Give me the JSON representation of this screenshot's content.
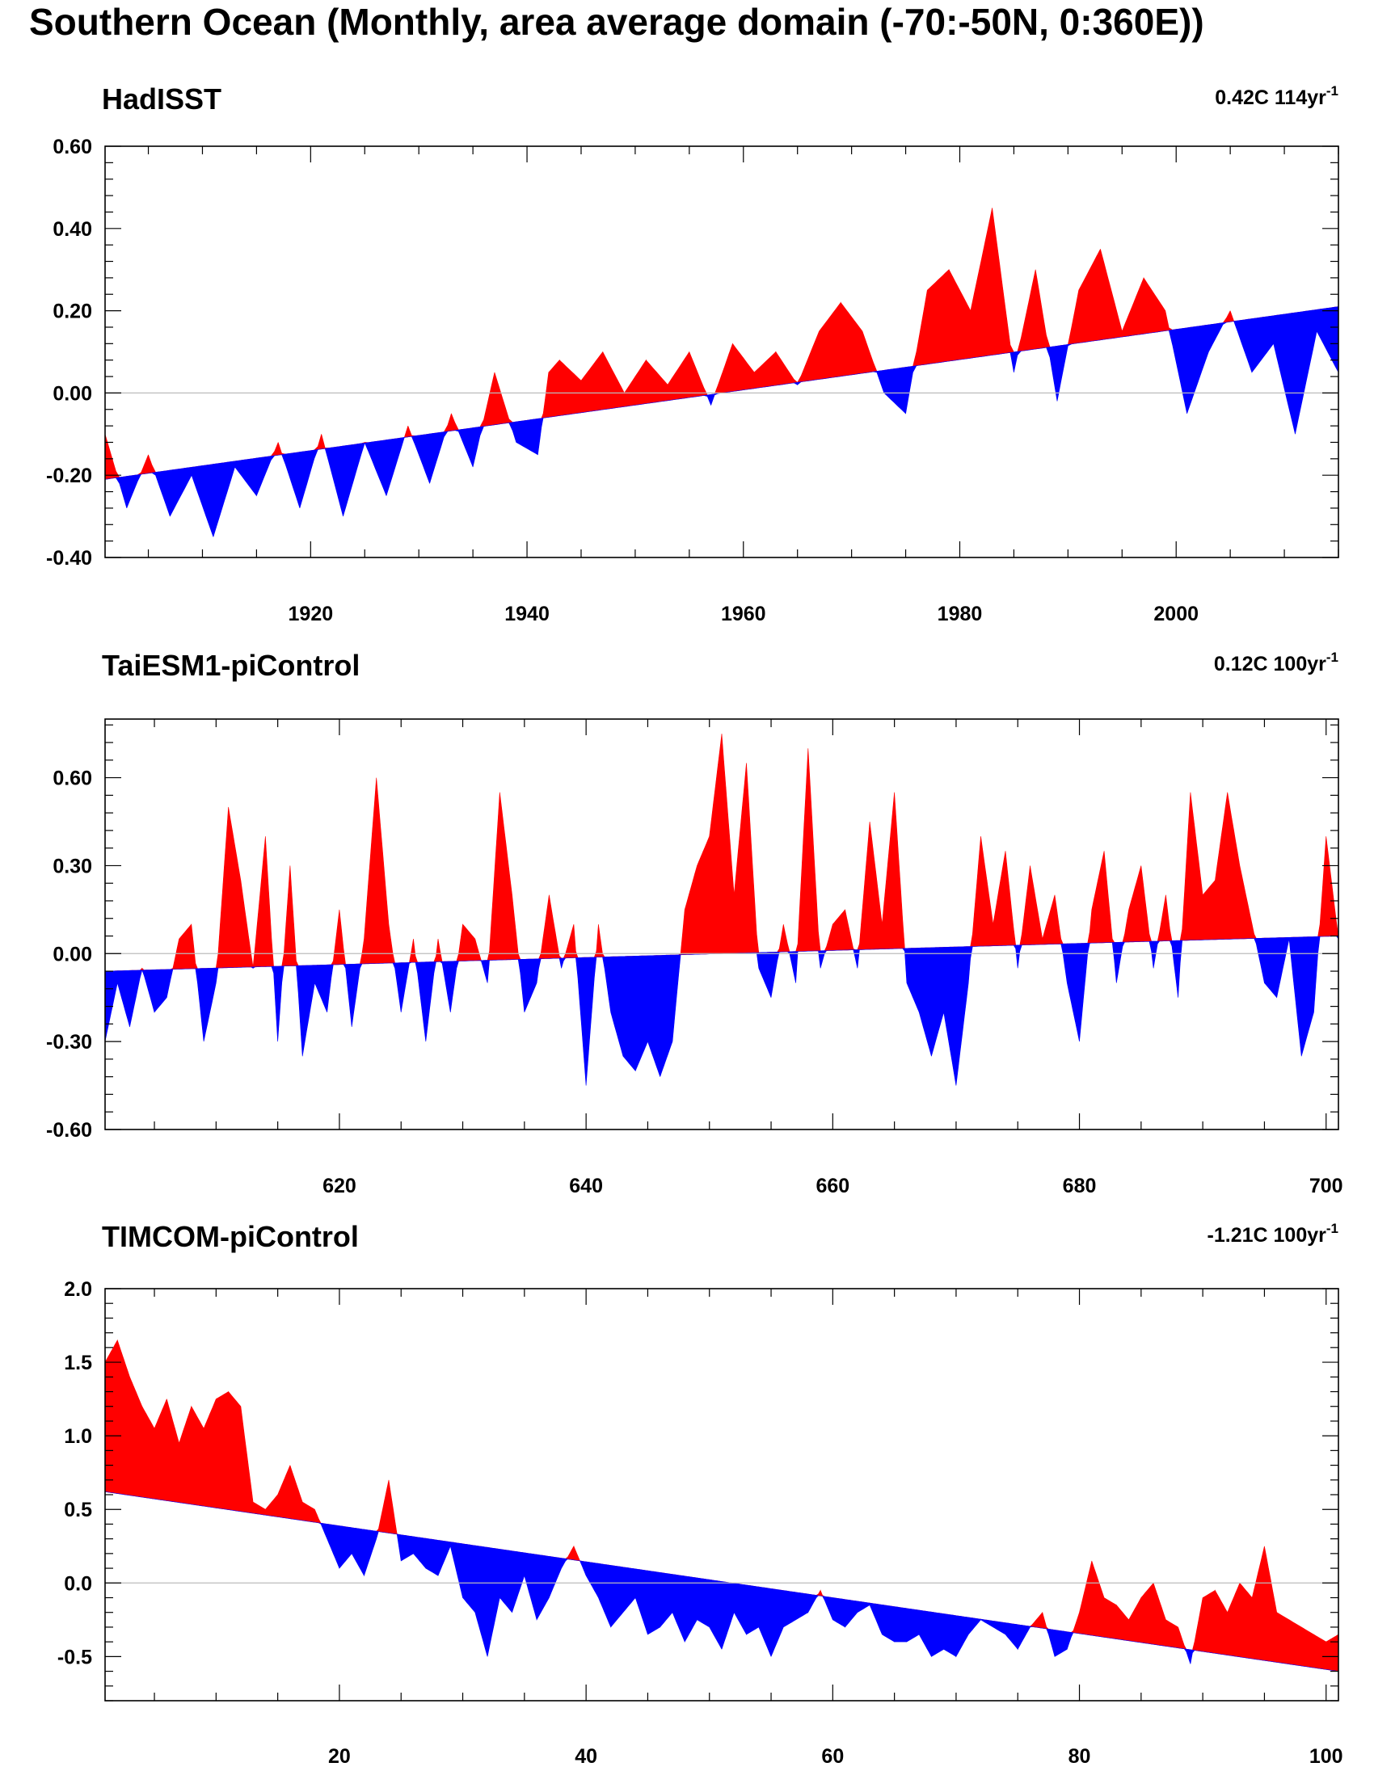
{
  "title": "Southern Ocean (Monthly, area average domain (-70:-50N, 0:360E))",
  "colors": {
    "above": "#ff0000",
    "below": "#0000ff",
    "zero_line": "#bbbbbb",
    "frame": "#000000"
  },
  "chart_data": [
    {
      "type": "area",
      "panel_title": "HadISST",
      "trend_label": {
        "value": "0.42C 114yr",
        "superscript": "-1"
      },
      "xlim": [
        1901,
        2015
      ],
      "ylim": [
        -0.4,
        0.6
      ],
      "x_ticks": [
        1920,
        1940,
        1960,
        1980,
        2000
      ],
      "x_tick_labels": [
        "1920",
        "1940",
        "1960",
        "1980",
        "2000"
      ],
      "y_ticks": [
        -0.4,
        -0.2,
        0.0,
        0.2,
        0.4,
        0.6
      ],
      "y_tick_labels": [
        "-0.40",
        "-0.20",
        "0.00",
        "0.20",
        "0.40",
        "0.60"
      ],
      "baseline": {
        "x": [
          1901,
          2015
        ],
        "y": [
          -0.21,
          0.21
        ]
      },
      "series": {
        "x": [
          1901,
          1903,
          1905,
          1907,
          1909,
          1911,
          1913,
          1915,
          1917,
          1919,
          1921,
          1923,
          1925,
          1927,
          1929,
          1931,
          1933,
          1935,
          1937,
          1939,
          1941,
          1942,
          1943,
          1945,
          1947,
          1949,
          1951,
          1953,
          1955,
          1957,
          1959,
          1961,
          1963,
          1965,
          1967,
          1969,
          1971,
          1973,
          1975,
          1977,
          1979,
          1981,
          1983,
          1985,
          1987,
          1989,
          1991,
          1993,
          1995,
          1997,
          1999,
          2001,
          2003,
          2005,
          2007,
          2009,
          2011,
          2013,
          2015
        ],
        "y": [
          -0.1,
          -0.28,
          -0.15,
          -0.3,
          -0.2,
          -0.35,
          -0.18,
          -0.25,
          -0.12,
          -0.28,
          -0.1,
          -0.3,
          -0.12,
          -0.25,
          -0.08,
          -0.22,
          -0.05,
          -0.18,
          0.05,
          -0.12,
          -0.15,
          0.05,
          0.08,
          0.03,
          0.1,
          0.0,
          0.08,
          0.02,
          0.1,
          -0.03,
          0.12,
          0.05,
          0.1,
          0.02,
          0.15,
          0.22,
          0.15,
          0.0,
          -0.05,
          0.25,
          0.3,
          0.2,
          0.45,
          0.05,
          0.3,
          -0.02,
          0.25,
          0.35,
          0.15,
          0.28,
          0.2,
          -0.05,
          0.1,
          0.2,
          0.05,
          0.12,
          -0.1,
          0.15,
          0.05
        ]
      }
    },
    {
      "type": "area",
      "panel_title": "TaiESM1-piControl",
      "trend_label": {
        "value": "0.12C 100yr",
        "superscript": "-1"
      },
      "xlim": [
        601,
        701
      ],
      "ylim": [
        -0.6,
        0.8
      ],
      "x_ticks": [
        620,
        640,
        660,
        680,
        700
      ],
      "x_tick_labels": [
        "620",
        "640",
        "660",
        "680",
        "700"
      ],
      "y_ticks": [
        -0.6,
        -0.3,
        0.0,
        0.3,
        0.6
      ],
      "y_tick_labels": [
        "-0.60",
        "-0.30",
        "0.00",
        "0.30",
        "0.60"
      ],
      "baseline": {
        "x": [
          601,
          701
        ],
        "y": [
          -0.06,
          0.06
        ]
      },
      "series": {
        "x": [
          601,
          602,
          603,
          604,
          605,
          606,
          607,
          608,
          609,
          610,
          611,
          612,
          613,
          614,
          615,
          616,
          617,
          618,
          619,
          620,
          621,
          622,
          623,
          624,
          625,
          626,
          627,
          628,
          629,
          630,
          631,
          632,
          633,
          634,
          635,
          636,
          637,
          638,
          639,
          640,
          641,
          642,
          643,
          644,
          645,
          646,
          647,
          648,
          649,
          650,
          651,
          652,
          653,
          654,
          655,
          656,
          657,
          658,
          659,
          660,
          661,
          662,
          663,
          664,
          665,
          666,
          667,
          668,
          669,
          670,
          671,
          672,
          673,
          674,
          675,
          676,
          677,
          678,
          679,
          680,
          681,
          682,
          683,
          684,
          685,
          686,
          687,
          688,
          689,
          690,
          691,
          692,
          693,
          694,
          695,
          696,
          697,
          698,
          699,
          700,
          701
        ],
        "y": [
          -0.3,
          -0.1,
          -0.25,
          -0.05,
          -0.2,
          -0.15,
          0.05,
          0.1,
          -0.3,
          -0.1,
          0.5,
          0.25,
          -0.05,
          0.4,
          -0.3,
          0.3,
          -0.35,
          -0.1,
          -0.2,
          0.15,
          -0.25,
          0.05,
          0.6,
          0.1,
          -0.2,
          0.05,
          -0.3,
          0.05,
          -0.2,
          0.1,
          0.05,
          -0.1,
          0.55,
          0.2,
          -0.2,
          -0.1,
          0.2,
          -0.05,
          0.1,
          -0.45,
          0.1,
          -0.2,
          -0.35,
          -0.4,
          -0.3,
          -0.42,
          -0.3,
          0.15,
          0.3,
          0.4,
          0.75,
          0.2,
          0.65,
          -0.05,
          -0.15,
          0.1,
          -0.1,
          0.7,
          -0.05,
          0.1,
          0.15,
          -0.05,
          0.45,
          0.1,
          0.55,
          -0.1,
          -0.2,
          -0.35,
          -0.2,
          -0.45,
          -0.1,
          0.4,
          0.1,
          0.35,
          -0.05,
          0.3,
          0.05,
          0.2,
          -0.1,
          -0.3,
          0.15,
          0.35,
          -0.1,
          0.15,
          0.3,
          -0.05,
          0.2,
          -0.15,
          0.55,
          0.2,
          0.25,
          0.55,
          0.3,
          0.1,
          -0.1,
          -0.15,
          0.05,
          -0.35,
          -0.2,
          0.4,
          0.05
        ]
      }
    },
    {
      "type": "area",
      "panel_title": "TIMCOM-piControl",
      "trend_label": {
        "value": "-1.21C 100yr",
        "superscript": "-1"
      },
      "xlim": [
        1,
        101
      ],
      "ylim": [
        -0.8,
        2.0
      ],
      "x_ticks": [
        20,
        40,
        60,
        80,
        100
      ],
      "x_tick_labels": [
        "20",
        "40",
        "60",
        "80",
        "100"
      ],
      "y_ticks": [
        -0.5,
        0.0,
        0.5,
        1.0,
        1.5,
        2.0
      ],
      "y_tick_labels": [
        "-0.5",
        "0.0",
        "0.5",
        "1.0",
        "1.5",
        "2.0"
      ],
      "baseline": {
        "x": [
          1,
          101
        ],
        "y": [
          0.62,
          -0.6
        ]
      },
      "series": {
        "x": [
          1,
          2,
          3,
          4,
          5,
          6,
          7,
          8,
          9,
          10,
          11,
          12,
          13,
          14,
          15,
          16,
          17,
          18,
          19,
          20,
          21,
          22,
          23,
          24,
          25,
          26,
          27,
          28,
          29,
          30,
          31,
          32,
          33,
          34,
          35,
          36,
          37,
          38,
          39,
          40,
          41,
          42,
          43,
          44,
          45,
          46,
          47,
          48,
          49,
          50,
          51,
          52,
          53,
          54,
          55,
          56,
          57,
          58,
          59,
          60,
          61,
          62,
          63,
          64,
          65,
          66,
          67,
          68,
          69,
          70,
          71,
          72,
          73,
          74,
          75,
          76,
          77,
          78,
          79,
          80,
          81,
          82,
          83,
          84,
          85,
          86,
          87,
          88,
          89,
          90,
          91,
          92,
          93,
          94,
          95,
          96,
          97,
          98,
          99,
          100,
          101
        ],
        "y": [
          1.5,
          1.65,
          1.4,
          1.2,
          1.05,
          1.25,
          0.95,
          1.2,
          1.05,
          1.25,
          1.3,
          1.2,
          0.55,
          0.5,
          0.6,
          0.8,
          0.55,
          0.5,
          0.3,
          0.1,
          0.2,
          0.05,
          0.3,
          0.7,
          0.15,
          0.2,
          0.1,
          0.05,
          0.25,
          -0.1,
          -0.2,
          -0.5,
          -0.1,
          -0.2,
          0.05,
          -0.25,
          -0.1,
          0.1,
          0.25,
          0.05,
          -0.1,
          -0.3,
          -0.2,
          -0.1,
          -0.35,
          -0.3,
          -0.2,
          -0.4,
          -0.25,
          -0.3,
          -0.45,
          -0.2,
          -0.35,
          -0.3,
          -0.5,
          -0.3,
          -0.25,
          -0.2,
          -0.05,
          -0.25,
          -0.3,
          -0.2,
          -0.15,
          -0.35,
          -0.4,
          -0.4,
          -0.35,
          -0.5,
          -0.45,
          -0.5,
          -0.35,
          -0.25,
          -0.3,
          -0.35,
          -0.45,
          -0.3,
          -0.2,
          -0.5,
          -0.45,
          -0.2,
          0.15,
          -0.1,
          -0.15,
          -0.25,
          -0.1,
          0.0,
          -0.25,
          -0.3,
          -0.55,
          -0.1,
          -0.05,
          -0.2,
          0.0,
          -0.1,
          0.25,
          -0.2,
          -0.25,
          -0.3,
          -0.35,
          -0.4,
          -0.35
        ]
      }
    }
  ]
}
